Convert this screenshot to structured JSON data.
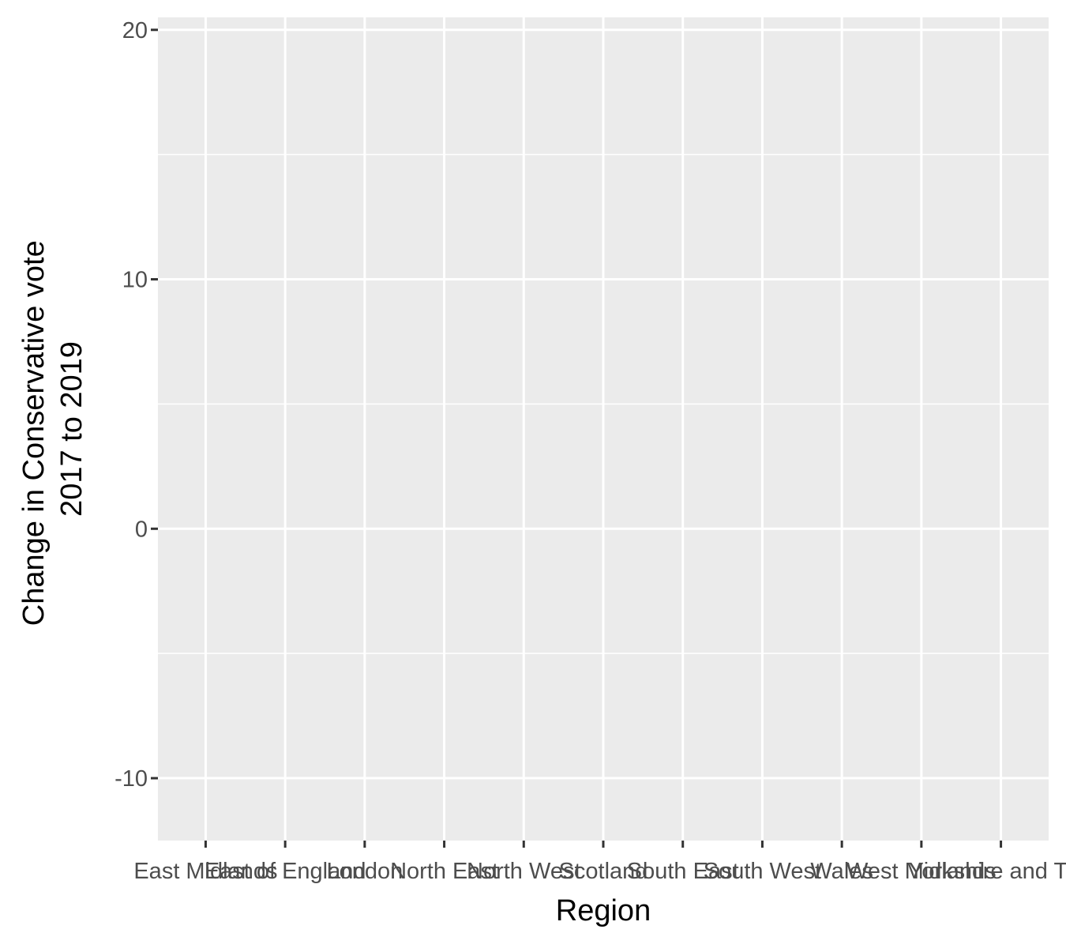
{
  "chart_data": {
    "type": "bar",
    "title": "",
    "xlabel": "Region",
    "ylabel_lines": [
      "Change in Conservative vote",
      "2017 to 2019"
    ],
    "categories": [
      "East Midlands",
      "East of England",
      "London",
      "North East",
      "North West",
      "Scotland",
      "South East",
      "South West",
      "Wales",
      "West Midlands",
      "Yorkshire and The"
    ],
    "series": [],
    "ylim": [
      -12.5,
      20.5
    ],
    "y_ticks": [
      -10,
      0,
      10,
      20
    ],
    "y_tick_labels": [
      "-10",
      "0",
      "10",
      "20"
    ],
    "grid": true,
    "legend": "none",
    "colors": {
      "panel_bg": "#ebebeb",
      "grid": "#ffffff",
      "tick": "#333333",
      "tick_label": "#4d4d4d",
      "title": "#000000"
    }
  }
}
